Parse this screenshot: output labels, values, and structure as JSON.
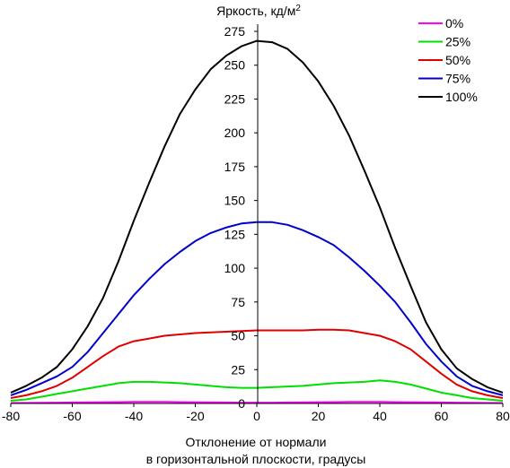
{
  "chart_data": {
    "type": "line",
    "title": "",
    "ylabel": "Яркость, кд/м²",
    "xlabel_line1": "Отклонение от нормали",
    "xlabel_line2": "в горизонтальной плоскости, градусы",
    "xlim": [
      -80,
      80
    ],
    "ylim": [
      0,
      275
    ],
    "xticks": [
      -80,
      -60,
      -40,
      -20,
      0,
      20,
      40,
      60,
      80
    ],
    "yticks": [
      0,
      25,
      50,
      75,
      100,
      125,
      150,
      175,
      200,
      225,
      250,
      275
    ],
    "grid": false,
    "legend_position": "top-right",
    "x": [
      -80,
      -75,
      -70,
      -65,
      -60,
      -55,
      -50,
      -45,
      -40,
      -35,
      -30,
      -25,
      -20,
      -15,
      -10,
      -5,
      0,
      5,
      10,
      15,
      20,
      25,
      30,
      35,
      40,
      45,
      50,
      55,
      60,
      65,
      70,
      75,
      80
    ],
    "series": [
      {
        "name": "0%",
        "color": "#ff00ff",
        "values": [
          0.3,
          0.4,
          0.5,
          0.6,
          0.7,
          0.8,
          0.9,
          1.0,
          1.1,
          1.1,
          1.1,
          1.0,
          0.9,
          0.8,
          0.7,
          0.6,
          0.6,
          0.6,
          0.7,
          0.8,
          0.9,
          1.0,
          1.1,
          1.1,
          1.1,
          1.0,
          0.9,
          0.8,
          0.7,
          0.6,
          0.5,
          0.4,
          0.3
        ]
      },
      {
        "name": "25%",
        "color": "#00e000",
        "values": [
          2,
          3,
          5,
          7,
          9,
          11,
          13,
          15,
          16,
          16,
          15.5,
          15,
          14,
          13,
          12,
          11.5,
          11.5,
          12,
          12.5,
          13,
          14,
          15,
          15.5,
          16,
          17,
          16,
          14,
          11,
          8,
          6,
          4,
          3,
          2
        ]
      },
      {
        "name": "50%",
        "color": "#e00000",
        "values": [
          4,
          6,
          9,
          13,
          19,
          27,
          35,
          42,
          46,
          48,
          50,
          51,
          52,
          52.5,
          53,
          53.5,
          54,
          54,
          54,
          54,
          54.5,
          54.5,
          54,
          52,
          50,
          46,
          40,
          31,
          22,
          14,
          9,
          6,
          4
        ]
      },
      {
        "name": "75%",
        "color": "#0000cc",
        "values": [
          6,
          10,
          15,
          20,
          27,
          38,
          52,
          66,
          80,
          92,
          103,
          112,
          120,
          126,
          130,
          133,
          134,
          134,
          132,
          128,
          123,
          117,
          108,
          98,
          87,
          75,
          60,
          44,
          31,
          20,
          13,
          9,
          6
        ]
      },
      {
        "name": "100%",
        "color": "#000000",
        "values": [
          8,
          13,
          19,
          27,
          40,
          57,
          78,
          105,
          135,
          163,
          190,
          214,
          232,
          247,
          257,
          264,
          268,
          267,
          262,
          252,
          238,
          220,
          198,
          172,
          145,
          115,
          87,
          60,
          40,
          26,
          18,
          12,
          8
        ]
      }
    ]
  }
}
